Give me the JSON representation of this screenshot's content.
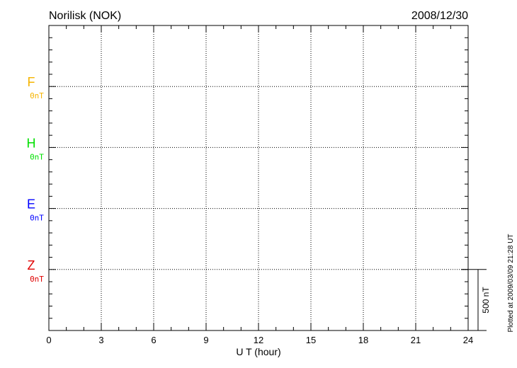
{
  "chart_data": {
    "type": "line",
    "title": "Norilisk (NOK)",
    "date": "2008/12/30",
    "xlabel": "U T (hour)",
    "xlim": [
      0,
      24
    ],
    "x_ticks": [
      "0",
      "3",
      "6",
      "9",
      "12",
      "15",
      "18",
      "21",
      "24"
    ],
    "grid": true,
    "series": [
      {
        "name": "F",
        "baseline_label": "0nT",
        "color": "#f5b400",
        "values": []
      },
      {
        "name": "H",
        "baseline_label": "0nT",
        "color": "#00e000",
        "values": []
      },
      {
        "name": "E",
        "baseline_label": "0nT",
        "color": "#0000ff",
        "values": []
      },
      {
        "name": "Z",
        "baseline_label": "0nT",
        "color": "#e00000",
        "values": []
      }
    ],
    "scale_bar": "500 nT",
    "footnote": "Plotted at 2009/03/09 21:28 UT"
  }
}
